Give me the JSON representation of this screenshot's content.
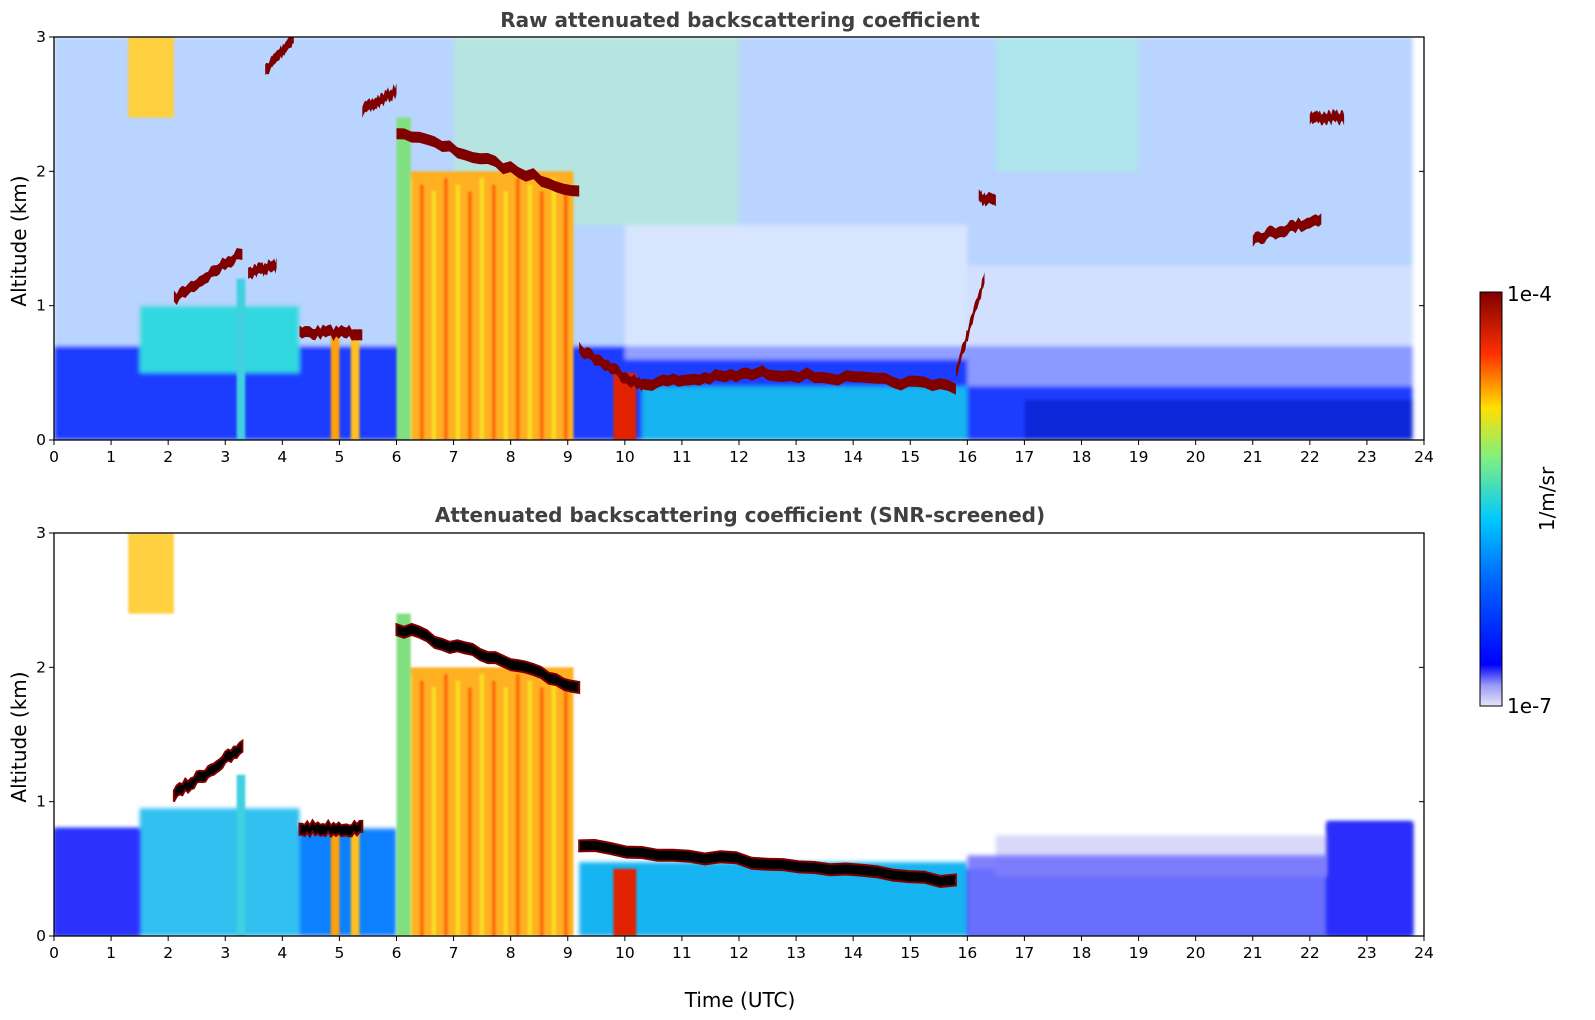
{
  "colors": {
    "colormap": [
      "#e6e6fa",
      "#0000ff",
      "#00c8ff",
      "#ffe000",
      "#ff3000",
      "#800000"
    ],
    "cloud_top": "#000000"
  },
  "colorbar": {
    "max_label": "1e-4",
    "min_label": "1e-7",
    "unit_label": "1/m/sr",
    "scale": "log"
  },
  "chart_data": [
    {
      "type": "heatmap",
      "title": "Raw attenuated backscattering coefficient",
      "xlabel": "",
      "ylabel": "Altitude (km)",
      "xlim": [
        0,
        24
      ],
      "ylim": [
        0,
        3
      ],
      "x_ticks": [
        "0",
        "1",
        "2",
        "3",
        "4",
        "5",
        "6",
        "7",
        "8",
        "9",
        "10",
        "11",
        "12",
        "13",
        "14",
        "15",
        "16",
        "17",
        "18",
        "19",
        "20",
        "21",
        "22",
        "23",
        "24"
      ],
      "y_ticks": [
        "0",
        "1",
        "2",
        "3"
      ],
      "value_unit": "1/m/sr",
      "color_scale": "log",
      "value_range": [
        1e-07,
        0.0001
      ],
      "features": [
        {
          "x_start": 2.1,
          "x_end": 3.3,
          "alt_start": 1.05,
          "alt_end": 1.4,
          "value": 0.0001
        },
        {
          "x_start": 3.4,
          "x_end": 3.9,
          "alt_start": 1.25,
          "alt_end": 1.3,
          "value": 0.0001
        },
        {
          "x_start": 3.7,
          "x_end": 4.2,
          "alt_start": 2.75,
          "alt_end": 3.0,
          "value": 0.0001
        },
        {
          "x_start": 4.3,
          "x_end": 5.4,
          "alt_start": 0.8,
          "alt_end": 0.8,
          "value": 0.0001
        },
        {
          "x_start": 5.4,
          "x_end": 6.0,
          "alt_start": 2.45,
          "alt_end": 2.6,
          "value": 0.0001
        },
        {
          "x_start": 6.0,
          "x_end": 9.2,
          "alt_start": 2.3,
          "alt_end": 1.85,
          "value": 0.0001
        },
        {
          "x_start": 9.2,
          "x_end": 10.3,
          "alt_start": 0.68,
          "alt_end": 0.4,
          "value": 0.0001
        },
        {
          "x_start": 10.3,
          "x_end": 12.5,
          "alt_start": 0.42,
          "alt_end": 0.5,
          "value": 0.0001
        },
        {
          "x_start": 12.5,
          "x_end": 15.8,
          "alt_start": 0.5,
          "alt_end": 0.4,
          "value": 0.0001
        },
        {
          "x_start": 15.8,
          "x_end": 16.3,
          "alt_start": 0.5,
          "alt_end": 1.2,
          "value": 0.0001
        },
        {
          "x_start": 16.2,
          "x_end": 16.5,
          "alt_start": 1.8,
          "alt_end": 1.8,
          "value": 0.0001
        },
        {
          "x_start": 21.0,
          "x_end": 22.2,
          "alt_start": 1.5,
          "alt_end": 1.65,
          "value": 0.0001
        },
        {
          "x_start": 22.0,
          "x_end": 22.6,
          "alt_start": 2.4,
          "alt_end": 2.4,
          "value": 0.0001
        }
      ]
    },
    {
      "type": "heatmap",
      "title": "Attenuated backscattering coefficient (SNR-screened)",
      "xlabel": "Time (UTC)",
      "ylabel": "Altitude (km)",
      "xlim": [
        0,
        24
      ],
      "ylim": [
        0,
        3
      ],
      "x_ticks": [
        "0",
        "1",
        "2",
        "3",
        "4",
        "5",
        "6",
        "7",
        "8",
        "9",
        "10",
        "11",
        "12",
        "13",
        "14",
        "15",
        "16",
        "17",
        "18",
        "19",
        "20",
        "21",
        "22",
        "23",
        "24"
      ],
      "y_ticks": [
        "0",
        "1",
        "2",
        "3"
      ],
      "value_unit": "1/m/sr",
      "color_scale": "log",
      "value_range": [
        1e-07,
        0.0001
      ],
      "features": [
        {
          "x_start": 0.0,
          "x_end": 1.5,
          "alt_start": 0.0,
          "alt_end": 0.8,
          "value": 3e-07
        },
        {
          "x_start": 2.1,
          "x_end": 3.3,
          "alt_start": 1.05,
          "alt_end": 1.4,
          "value": 0.0001
        },
        {
          "x_start": 4.3,
          "x_end": 5.4,
          "alt_start": 0.8,
          "alt_end": 0.8,
          "value": 0.0001
        },
        {
          "x_start": 6.0,
          "x_end": 9.2,
          "alt_start": 2.3,
          "alt_end": 1.85,
          "value": 0.0001
        },
        {
          "x_start": 9.2,
          "x_end": 15.8,
          "alt_start": 0.68,
          "alt_end": 0.4,
          "value": 0.0001
        },
        {
          "x_start": 16.0,
          "x_end": 22.3,
          "alt_start": 0.0,
          "alt_end": 0.6,
          "value": 2e-07
        },
        {
          "x_start": 22.3,
          "x_end": 23.8,
          "alt_start": 0.0,
          "alt_end": 0.85,
          "value": 3e-07
        }
      ]
    }
  ]
}
